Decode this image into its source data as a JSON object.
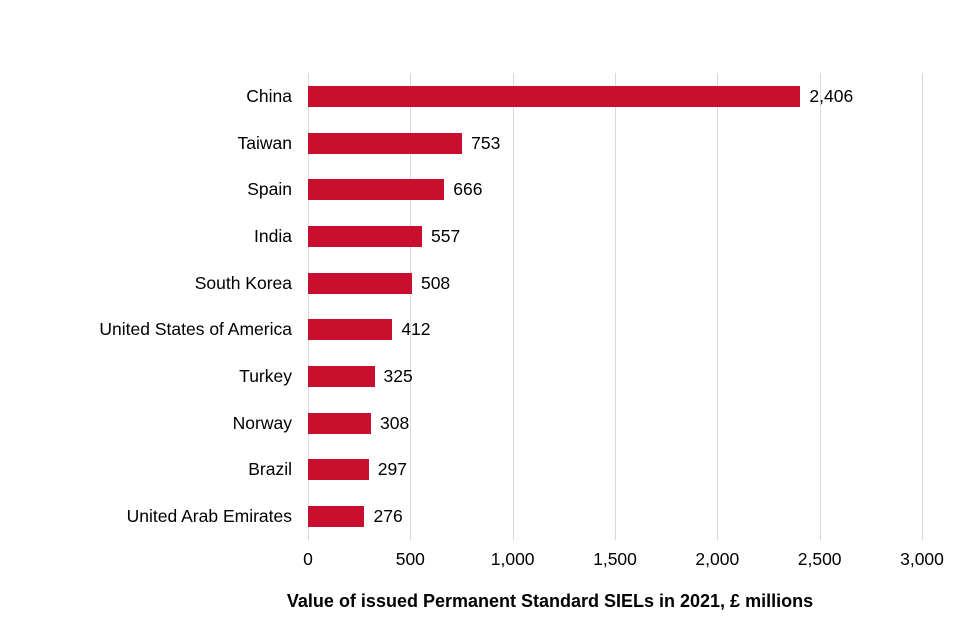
{
  "chart_data": {
    "type": "bar",
    "orientation": "horizontal",
    "title": "Value of issued Permanent Standard SIELs in 2021, £ millions",
    "categories": [
      "China",
      "Taiwan",
      "Spain",
      "India",
      "South Korea",
      "United States of America",
      "Turkey",
      "Norway",
      "Brazil",
      "United Arab Emirates"
    ],
    "values": [
      2406,
      753,
      666,
      557,
      508,
      412,
      325,
      308,
      297,
      276
    ],
    "value_labels": [
      "2,406",
      "753",
      "666",
      "557",
      "508",
      "412",
      "325",
      "308",
      "297",
      "276"
    ],
    "x_ticks": [
      "0",
      "500",
      "1,000",
      "1,500",
      "2,000",
      "2,500",
      "3,000"
    ],
    "x_tick_values": [
      0,
      500,
      1000,
      1500,
      2000,
      2500,
      3000
    ],
    "xlim": [
      0,
      3000
    ],
    "grid": "vertical",
    "legend": "none",
    "colors": {
      "bar": "#C8102E",
      "gridline": "#D9D9D9",
      "text": "#000000",
      "background": "#FFFFFF"
    }
  }
}
